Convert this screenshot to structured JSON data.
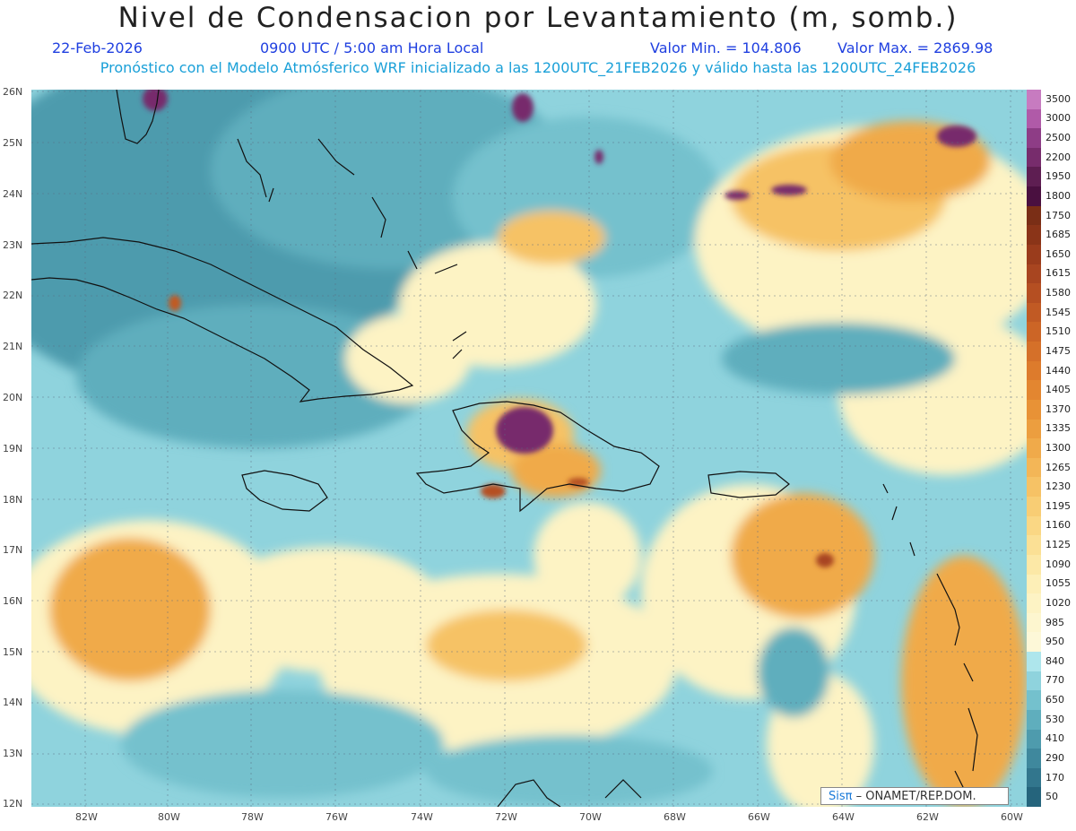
{
  "header": {
    "title": "Nivel de Condensacion por Levantamiento (m, somb.)",
    "date": "22-Feb-2026",
    "time": "0900 UTC / 5:00 am Hora Local",
    "valmin": "Valor Min. = 104.806",
    "valmax": "Valor Max. = 2869.98",
    "model_line": "Pronóstico con el Modelo Atmósferico WRF inicializado a las 1200UTC_21FEB2026 y válido hasta las  1200UTC_24FEB2026"
  },
  "axes": {
    "lat_labels": [
      "26N",
      "25N",
      "24N",
      "23N",
      "22N",
      "21N",
      "20N",
      "19N",
      "18N",
      "17N",
      "16N",
      "15N",
      "14N",
      "13N",
      "12N"
    ],
    "lon_labels": [
      "82W",
      "80W",
      "78W",
      "76W",
      "74W",
      "72W",
      "70W",
      "68W",
      "66W",
      "64W",
      "62W",
      "60W"
    ]
  },
  "colorbar": {
    "levels": [
      "3500",
      "3000",
      "2500",
      "2200",
      "1950",
      "1800",
      "1750",
      "1685",
      "1650",
      "1615",
      "1580",
      "1545",
      "1510",
      "1475",
      "1440",
      "1405",
      "1370",
      "1335",
      "1300",
      "1265",
      "1230",
      "1195",
      "1160",
      "1125",
      "1090",
      "1055",
      "1020",
      "985",
      "950",
      "840",
      "770",
      "650",
      "530",
      "410",
      "290",
      "170",
      "50"
    ],
    "colors": [
      "#c77bc0",
      "#b05aa8",
      "#8e3d86",
      "#772c6c",
      "#5e1e52",
      "#4a1040",
      "#7a2e16",
      "#8a3418",
      "#9a3c1c",
      "#a84520",
      "#b54f22",
      "#c15a24",
      "#cc6526",
      "#d57029",
      "#dd7b2c",
      "#e38630",
      "#e89236",
      "#ec9e3f",
      "#f0aa4a",
      "#f3b657",
      "#f6c265",
      "#f8cd74",
      "#fad784",
      "#fbe095",
      "#fce8a6",
      "#fdefb7",
      "#fdf3c4",
      "#fdf6cf",
      "#fdf8d8",
      "#aee6ec",
      "#8fd3dd",
      "#74c1cd",
      "#5faebd",
      "#4e9bad",
      "#3f889d",
      "#32768d",
      "#25647c"
    ]
  },
  "credit": {
    "logo": "Sisπ",
    "text": " – ONAMET/REP.DOM."
  }
}
